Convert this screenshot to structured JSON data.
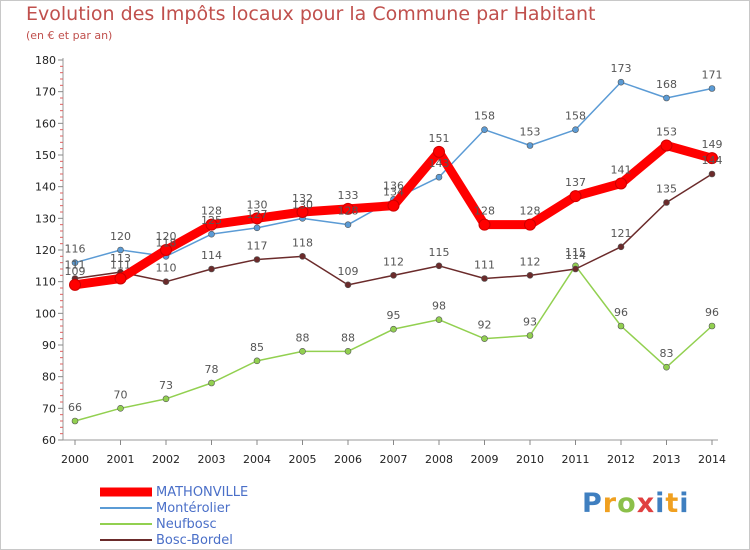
{
  "chart_data": {
    "type": "line",
    "title": "Evolution des Impôts locaux pour la Commune par Habitant",
    "subtitle": "(en € et par an)",
    "x": [
      "2000",
      "2001",
      "2002",
      "2003",
      "2004",
      "2005",
      "2006",
      "2007",
      "2008",
      "2009",
      "2010",
      "2011",
      "2012",
      "2013",
      "2014"
    ],
    "ylim": [
      60,
      180
    ],
    "yticks": [
      60,
      70,
      80,
      90,
      100,
      110,
      120,
      130,
      140,
      150,
      160,
      170,
      180
    ],
    "grid": false,
    "legend_position": "bottom-left",
    "series": [
      {
        "name": "MATHONVILLE",
        "color": "#ff0000",
        "values": [
          109,
          111,
          120,
          128,
          130,
          132,
          133,
          134,
          151,
          128,
          128,
          137,
          141,
          153,
          149
        ]
      },
      {
        "name": "Montérolier",
        "color": "#5b9bd5",
        "values": [
          116,
          120,
          118,
          125,
          127,
          130,
          128,
          136,
          143,
          158,
          153,
          158,
          173,
          168,
          171
        ]
      },
      {
        "name": "Neufbosc",
        "color": "#92d050",
        "values": [
          66,
          70,
          73,
          78,
          85,
          88,
          88,
          95,
          98,
          92,
          93,
          115,
          96,
          83,
          96
        ]
      },
      {
        "name": "Bosc-Bordel",
        "color": "#6b2b2b",
        "values": [
          111,
          113,
          110,
          114,
          117,
          118,
          109,
          112,
          115,
          111,
          112,
          114,
          121,
          135,
          144
        ]
      }
    ]
  },
  "brand": {
    "logo_letters": [
      "P",
      "r",
      "o",
      "x",
      "i",
      "t",
      "i"
    ]
  }
}
